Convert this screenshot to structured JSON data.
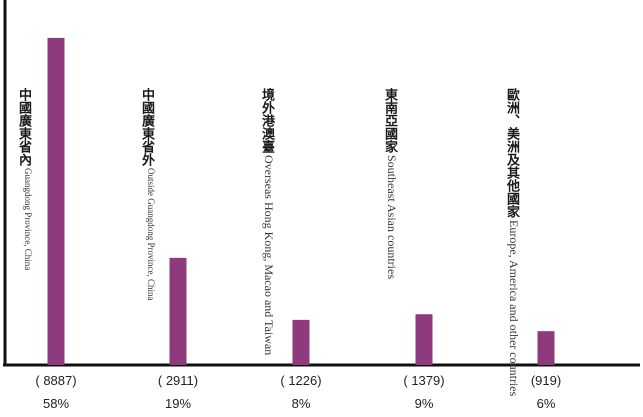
{
  "chart_data": {
    "type": "bar",
    "categories": [
      {
        "zh": "中國廣東省內",
        "en": "Guangdong Province, China"
      },
      {
        "zh": "中國廣東省外",
        "en": "Outside Guangdong Province, China"
      },
      {
        "zh": "境外港澳臺",
        "en": "Overseas Hong Kong, Macao and Taiwan"
      },
      {
        "zh": "東南亞國家",
        "en": "Southeast Asian countries"
      },
      {
        "zh": "歐洲、美洲及其他國家",
        "en": "Europe, America and other countries"
      }
    ],
    "values": [
      8887,
      2911,
      1226,
      1379,
      919
    ],
    "count_labels": [
      "( 8887)",
      "( 2911)",
      "( 1226)",
      "( 1379)",
      "(919)"
    ],
    "percent_labels": [
      "58%",
      "19%",
      "8%",
      "9%",
      "6%"
    ],
    "ylim": [
      0,
      9700
    ],
    "grid": false,
    "colors": {
      "bar": "#8e3a7c",
      "axis": "#111111"
    }
  }
}
